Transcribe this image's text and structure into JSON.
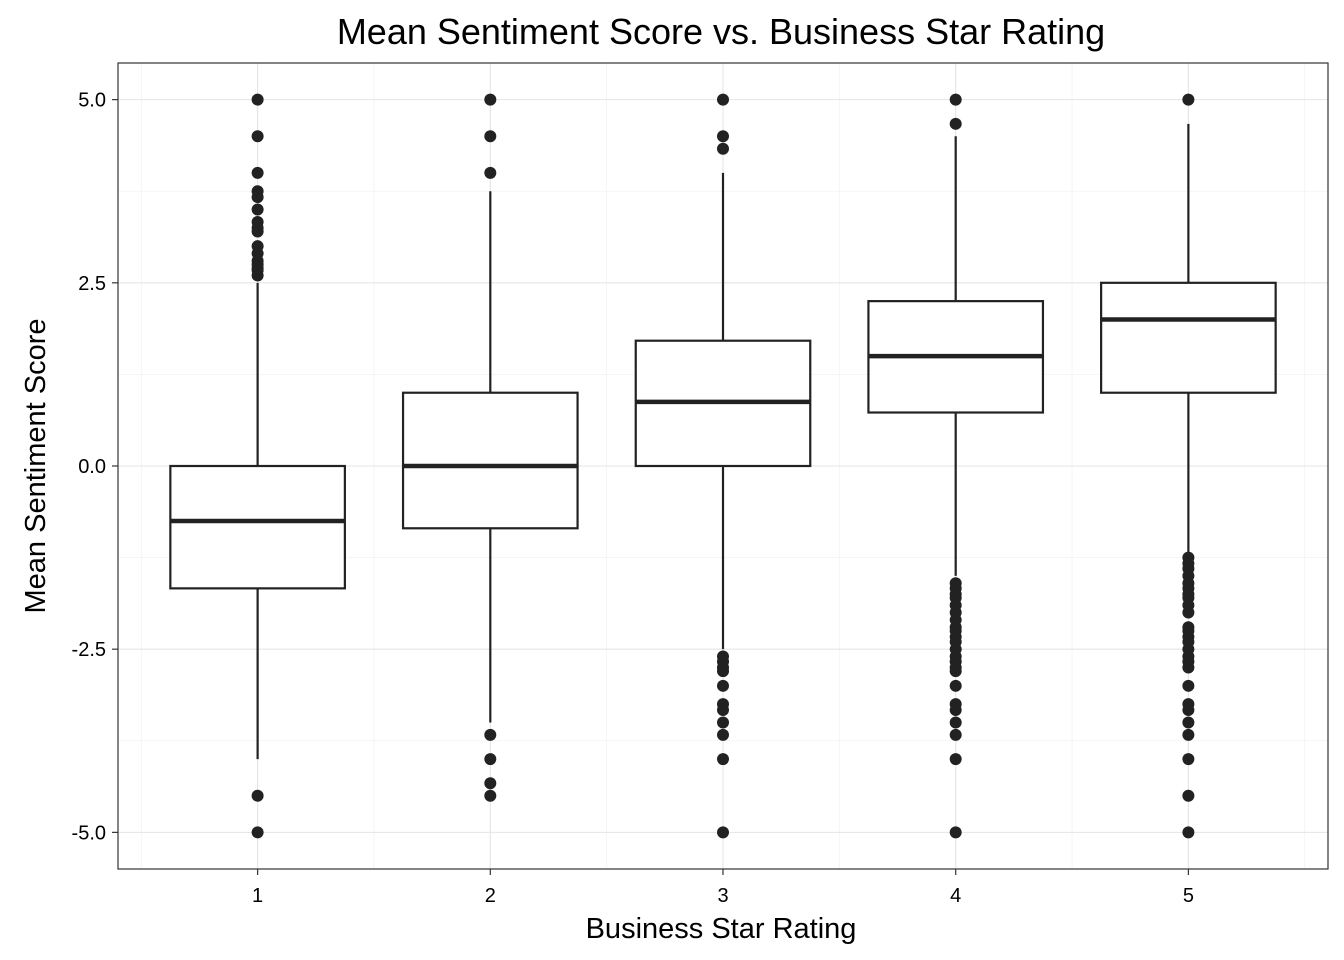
{
  "chart_data": {
    "type": "box",
    "title": "Mean Sentiment Score vs. Business Star Rating",
    "xlabel": "Business Star Rating",
    "ylabel": "Mean Sentiment Score",
    "ylim": [
      -5.5,
      5.5
    ],
    "y_ticks": [
      -5.0,
      -2.5,
      0.0,
      2.5,
      5.0
    ],
    "y_tick_labels": [
      "-5.0",
      "-2.5",
      "0.0",
      "2.5",
      "5.0"
    ],
    "categories": [
      "1",
      "2",
      "3",
      "4",
      "5"
    ],
    "grid": true,
    "boxes": [
      {
        "category": "1",
        "whisker_low": -4.0,
        "q1": -1.67,
        "median": -0.75,
        "q3": 0.0,
        "whisker_high": 2.5,
        "outliers": [
          5.0,
          4.5,
          4.0,
          3.75,
          3.67,
          3.5,
          3.33,
          3.25,
          3.2,
          3.0,
          2.9,
          2.8,
          2.75,
          2.7,
          2.67,
          2.6,
          -4.5,
          -5.0
        ]
      },
      {
        "category": "2",
        "whisker_low": -3.5,
        "q1": -0.85,
        "median": 0.0,
        "q3": 1.0,
        "whisker_high": 3.75,
        "outliers": [
          5.0,
          4.5,
          4.0,
          -3.67,
          -4.0,
          -4.33,
          -4.5
        ]
      },
      {
        "category": "3",
        "whisker_low": -2.5,
        "q1": 0.0,
        "median": 0.875,
        "q3": 1.71,
        "whisker_high": 4.0,
        "outliers": [
          5.0,
          4.5,
          4.33,
          -2.6,
          -2.67,
          -2.75,
          -2.8,
          -3.0,
          -3.25,
          -3.33,
          -3.5,
          -3.67,
          -4.0,
          -5.0
        ]
      },
      {
        "category": "4",
        "whisker_low": -1.5,
        "q1": 0.73,
        "median": 1.5,
        "q3": 2.25,
        "whisker_high": 4.5,
        "outliers": [
          5.0,
          4.67,
          -1.6,
          -1.67,
          -1.75,
          -1.8,
          -1.9,
          -2.0,
          -2.1,
          -2.2,
          -2.25,
          -2.33,
          -2.4,
          -2.5,
          -2.6,
          -2.67,
          -2.75,
          -2.8,
          -3.0,
          -3.25,
          -3.33,
          -3.5,
          -3.67,
          -4.0,
          -5.0
        ]
      },
      {
        "category": "5",
        "whisker_low": -1.2,
        "q1": 1.0,
        "median": 2.0,
        "q3": 2.5,
        "whisker_high": 4.67,
        "outliers": [
          5.0,
          -1.25,
          -1.33,
          -1.4,
          -1.5,
          -1.6,
          -1.67,
          -1.75,
          -1.8,
          -1.9,
          -2.0,
          -2.2,
          -2.25,
          -2.33,
          -2.4,
          -2.5,
          -2.6,
          -2.67,
          -2.75,
          -3.0,
          -3.25,
          -3.33,
          -3.5,
          -3.67,
          -4.0,
          -4.5,
          -5.0
        ]
      }
    ]
  },
  "colors": {
    "box_stroke": "#222222",
    "box_fill": "#ffffff",
    "grid": "#e5e5e5",
    "panel_border": "#333333"
  }
}
